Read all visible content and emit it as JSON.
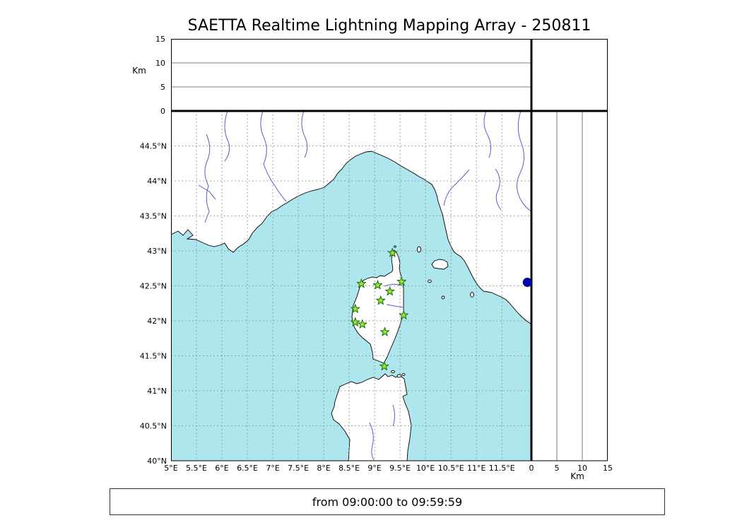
{
  "title": "SAETTA Realtime Lightning Mapping Array - 250811",
  "footer": {
    "text": "from 09:00:00 to 09:59:59"
  },
  "axes": {
    "alt_unit_left": "Km",
    "alt_unit_bottom": "Km",
    "alt_ticks": [
      {
        "value": 0,
        "label": "0"
      },
      {
        "value": 5,
        "label": "5"
      },
      {
        "value": 10,
        "label": "10"
      },
      {
        "value": 15,
        "label": "15"
      }
    ],
    "lat_ticks": [
      {
        "value": 40,
        "label": "40°N"
      },
      {
        "value": 40.5,
        "label": "40.5°N"
      },
      {
        "value": 41,
        "label": "41°N"
      },
      {
        "value": 41.5,
        "label": "41.5°N"
      },
      {
        "value": 42,
        "label": "42°N"
      },
      {
        "value": 42.5,
        "label": "42.5°N"
      },
      {
        "value": 43,
        "label": "43°N"
      },
      {
        "value": 43.5,
        "label": "43.5°N"
      },
      {
        "value": 44,
        "label": "44°N"
      },
      {
        "value": 44.5,
        "label": "44.5°N"
      }
    ],
    "lon_ticks": [
      {
        "value": 5,
        "label": "5°E"
      },
      {
        "value": 5.5,
        "label": "5.5°E"
      },
      {
        "value": 6,
        "label": "6°E"
      },
      {
        "value": 6.5,
        "label": "6.5°E"
      },
      {
        "value": 7,
        "label": "7°E"
      },
      {
        "value": 7.5,
        "label": "7.5°E"
      },
      {
        "value": 8,
        "label": "8°E"
      },
      {
        "value": 8.5,
        "label": "8.5°E"
      },
      {
        "value": 9,
        "label": "9°E"
      },
      {
        "value": 9.5,
        "label": "9.5°E"
      },
      {
        "value": 10,
        "label": "10°E"
      },
      {
        "value": 10.5,
        "label": "10.5°E"
      },
      {
        "value": 11,
        "label": "11°E"
      },
      {
        "value": 11.5,
        "label": "11.5°E"
      }
    ]
  },
  "colors": {
    "sea": "#aee6ee",
    "land": "#ffffff",
    "coastline": "#000000",
    "river": "#5560c8",
    "grid": "#8c8c8c",
    "station_fill": "#a6e42c",
    "station_edge": "#1f7a1f",
    "event_marker": "#0000aa"
  },
  "chart_data": {
    "type": "scatter",
    "title": "SAETTA Realtime Lightning Mapping Array - 250811",
    "map_extent": {
      "lon_min": 5.0,
      "lon_max": 12.08,
      "lat_min": 40.0,
      "lat_max": 45.0
    },
    "altitude_axis": {
      "unit": "Km",
      "min": 0,
      "max": 15,
      "ticks": [
        0,
        5,
        10,
        15
      ]
    },
    "time_window": {
      "from": "09:00:00",
      "to": "09:59:59"
    },
    "stations": [
      {
        "lon": 9.35,
        "lat": 42.97
      },
      {
        "lon": 8.74,
        "lat": 42.53
      },
      {
        "lon": 9.06,
        "lat": 42.51
      },
      {
        "lon": 9.53,
        "lat": 42.56
      },
      {
        "lon": 9.3,
        "lat": 42.42
      },
      {
        "lon": 9.12,
        "lat": 42.29
      },
      {
        "lon": 8.62,
        "lat": 42.17
      },
      {
        "lon": 9.57,
        "lat": 42.08
      },
      {
        "lon": 8.62,
        "lat": 41.98
      },
      {
        "lon": 8.76,
        "lat": 41.95
      },
      {
        "lon": 9.2,
        "lat": 41.84
      },
      {
        "lon": 9.19,
        "lat": 41.35
      }
    ],
    "events": [
      {
        "lon": 12.0,
        "lat": 42.55
      }
    ]
  }
}
